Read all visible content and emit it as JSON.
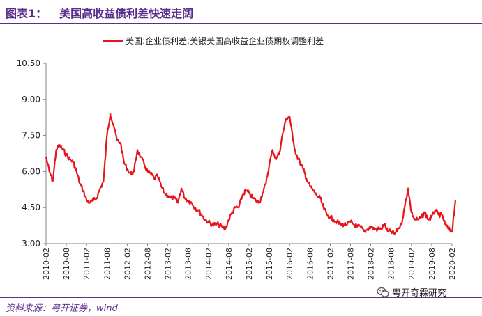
{
  "figure": {
    "label": "图表1：",
    "title": "美国高收益债利差快速走阔",
    "source": "资料来源：粤开证券，wind",
    "watermark": "粤开奇霖研究"
  },
  "colors": {
    "brand": "#5b2d8c",
    "series": "#e8141b",
    "axis": "#808080"
  },
  "chart_data": {
    "type": "line",
    "title": "",
    "xlabel": "",
    "ylabel": "",
    "legend": "top-center",
    "grid": false,
    "ylim": [
      3.0,
      10.5
    ],
    "yticks": [
      "3.00",
      "4.50",
      "6.00",
      "7.50",
      "9.00",
      "10.50"
    ],
    "ytick_values": [
      3.0,
      4.5,
      6.0,
      7.5,
      9.0,
      10.5
    ],
    "xlim": [
      "2010-02",
      "2020-02"
    ],
    "xticks": [
      "2010-02",
      "2010-08",
      "2011-02",
      "2011-08",
      "2012-02",
      "2012-08",
      "2013-02",
      "2013-08",
      "2014-02",
      "2014-08",
      "2015-02",
      "2015-08",
      "2016-02",
      "2016-08",
      "2017-02",
      "2017-08",
      "2018-02",
      "2018-08",
      "2019-02",
      "2019-08",
      "2020-02"
    ],
    "series": [
      {
        "name": "美国:企业债利差:美银美国高收益企业债期权调整利差",
        "x": [
          "2010-02",
          "2010-03",
          "2010-04",
          "2010-05",
          "2010-06",
          "2010-07",
          "2010-08",
          "2010-09",
          "2010-10",
          "2010-11",
          "2010-12",
          "2011-01",
          "2011-02",
          "2011-03",
          "2011-04",
          "2011-05",
          "2011-06",
          "2011-07",
          "2011-08",
          "2011-09",
          "2011-10",
          "2011-11",
          "2011-12",
          "2012-01",
          "2012-02",
          "2012-03",
          "2012-04",
          "2012-05",
          "2012-06",
          "2012-07",
          "2012-08",
          "2012-09",
          "2012-10",
          "2012-11",
          "2012-12",
          "2013-01",
          "2013-02",
          "2013-03",
          "2013-04",
          "2013-05",
          "2013-06",
          "2013-07",
          "2013-08",
          "2013-09",
          "2013-10",
          "2013-11",
          "2013-12",
          "2014-01",
          "2014-02",
          "2014-03",
          "2014-04",
          "2014-05",
          "2014-06",
          "2014-07",
          "2014-08",
          "2014-09",
          "2014-10",
          "2014-11",
          "2014-12",
          "2015-01",
          "2015-02",
          "2015-03",
          "2015-04",
          "2015-05",
          "2015-06",
          "2015-07",
          "2015-08",
          "2015-09",
          "2015-10",
          "2015-11",
          "2015-12",
          "2016-01",
          "2016-02",
          "2016-03",
          "2016-04",
          "2016-05",
          "2016-06",
          "2016-07",
          "2016-08",
          "2016-09",
          "2016-10",
          "2016-11",
          "2016-12",
          "2017-01",
          "2017-02",
          "2017-03",
          "2017-04",
          "2017-05",
          "2017-06",
          "2017-07",
          "2017-08",
          "2017-09",
          "2017-10",
          "2017-11",
          "2017-12",
          "2018-01",
          "2018-02",
          "2018-03",
          "2018-04",
          "2018-05",
          "2018-06",
          "2018-07",
          "2018-08",
          "2018-09",
          "2018-10",
          "2018-11",
          "2018-12",
          "2019-01",
          "2019-02",
          "2019-03",
          "2019-04",
          "2019-05",
          "2019-06",
          "2019-07",
          "2019-08",
          "2019-09",
          "2019-10",
          "2019-11",
          "2019-12",
          "2020-01",
          "2020-02",
          "2020-03"
        ],
        "values": [
          6.6,
          6.0,
          5.6,
          6.9,
          7.1,
          6.9,
          6.7,
          6.5,
          6.4,
          6.0,
          5.5,
          5.2,
          4.8,
          4.7,
          4.8,
          4.9,
          5.3,
          5.6,
          7.5,
          8.4,
          7.9,
          7.3,
          7.2,
          6.4,
          6.1,
          5.9,
          6.0,
          6.9,
          6.6,
          6.3,
          6.0,
          5.9,
          5.7,
          5.8,
          5.4,
          5.1,
          5.0,
          4.9,
          4.9,
          4.7,
          5.3,
          4.9,
          4.8,
          4.7,
          4.5,
          4.4,
          4.2,
          4.0,
          3.9,
          3.8,
          3.8,
          3.8,
          3.7,
          3.6,
          4.0,
          4.3,
          4.5,
          4.5,
          5.0,
          5.2,
          5.1,
          4.9,
          4.8,
          4.7,
          5.1,
          5.5,
          6.3,
          6.9,
          6.5,
          6.8,
          7.6,
          8.2,
          8.3,
          7.3,
          6.7,
          6.4,
          6.1,
          5.7,
          5.4,
          5.2,
          5.0,
          4.9,
          4.5,
          4.2,
          4.1,
          4.0,
          3.9,
          3.8,
          3.8,
          3.8,
          3.9,
          3.8,
          3.7,
          3.7,
          3.5,
          3.6,
          3.7,
          3.6,
          3.6,
          3.6,
          3.8,
          3.5,
          3.5,
          3.4,
          3.6,
          3.8,
          4.5,
          5.3,
          4.3,
          4.0,
          4.0,
          4.1,
          4.3,
          4.0,
          4.1,
          4.4,
          4.2,
          4.2,
          3.8,
          3.6,
          3.5,
          4.8
        ]
      }
    ]
  }
}
